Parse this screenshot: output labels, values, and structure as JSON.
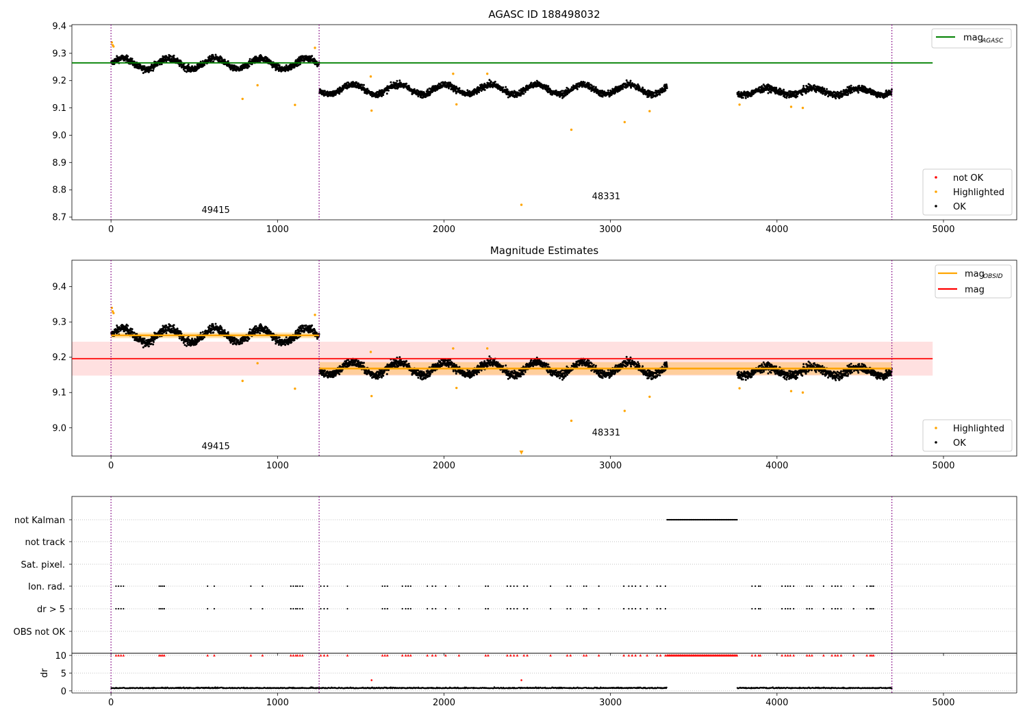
{
  "figure": {
    "title_top": "AGASC ID 188498032",
    "title_middle": "Magnitude Estimates"
  },
  "chart_data": [
    {
      "type": "scatter",
      "panel": "top",
      "title": "AGASC ID 188498032",
      "xlim": [
        -235,
        5440
      ],
      "ylim": [
        8.69,
        9.405
      ],
      "x_ticks": [
        0,
        1000,
        2000,
        3000,
        4000,
        5000
      ],
      "y_ticks": [
        8.7,
        8.8,
        8.9,
        9.0,
        9.1,
        9.2,
        9.3,
        9.4
      ],
      "y_tick_labels": [
        "8.7",
        "8.8",
        "8.9",
        "9.0",
        "9.1",
        "9.2",
        "9.3",
        "9.4"
      ],
      "mag_agasc": 9.265,
      "obs_boundaries": [
        0,
        1250,
        4690
      ],
      "obs_labels": [
        {
          "text": "49415",
          "x": 625
        },
        {
          "text": "48331",
          "x": 2970
        }
      ],
      "segments": [
        {
          "x_start": 0,
          "x_end": 1250,
          "mean": 9.262,
          "amp": 0.02,
          "noise": 0.012
        },
        {
          "x_start": 1250,
          "x_end": 3340,
          "mean": 9.168,
          "amp": 0.018,
          "noise": 0.012
        },
        {
          "x_start": 3760,
          "x_end": 4690,
          "mean": 9.16,
          "amp": 0.012,
          "noise": 0.012
        }
      ],
      "highlighted": [
        {
          "x": 5,
          "y": 9.34
        },
        {
          "x": 10,
          "y": 9.33
        },
        {
          "x": 15,
          "y": 9.325
        },
        {
          "x": 790,
          "y": 9.133
        },
        {
          "x": 880,
          "y": 9.183
        },
        {
          "x": 1105,
          "y": 9.111
        },
        {
          "x": 1225,
          "y": 9.32
        },
        {
          "x": 1560,
          "y": 9.215
        },
        {
          "x": 1565,
          "y": 9.09
        },
        {
          "x": 2055,
          "y": 9.225
        },
        {
          "x": 2075,
          "y": 9.113
        },
        {
          "x": 2260,
          "y": 9.225
        },
        {
          "x": 2465,
          "y": 8.745
        },
        {
          "x": 2765,
          "y": 9.02
        },
        {
          "x": 3085,
          "y": 9.048
        },
        {
          "x": 3235,
          "y": 9.088
        },
        {
          "x": 3775,
          "y": 9.112
        },
        {
          "x": 4085,
          "y": 9.104
        },
        {
          "x": 4155,
          "y": 9.1
        }
      ],
      "legend_top": [
        {
          "label": "mag",
          "subscript": "AGASC",
          "color": "#008000"
        }
      ],
      "legend_bottom": [
        {
          "label": "not OK",
          "color": "#ff0000"
        },
        {
          "label": "Highlighted",
          "color": "#ffa500"
        },
        {
          "label": "OK",
          "color": "#000000"
        }
      ]
    },
    {
      "type": "scatter",
      "panel": "middle",
      "title": "Magnitude Estimates",
      "xlim": [
        -235,
        5440
      ],
      "ylim": [
        8.92,
        9.475
      ],
      "x_ticks": [
        0,
        1000,
        2000,
        3000,
        4000,
        5000
      ],
      "y_ticks": [
        9.0,
        9.1,
        9.2,
        9.3,
        9.4
      ],
      "y_tick_labels": [
        "9.0",
        "9.1",
        "9.2",
        "9.3",
        "9.4"
      ],
      "mag": 9.196,
      "mag_band": [
        9.148,
        9.244
      ],
      "mag_obsid": [
        {
          "x_start": 0,
          "x_end": 1250,
          "value": 9.262,
          "band": [
            9.254,
            9.27
          ]
        },
        {
          "x_start": 1250,
          "x_end": 4690,
          "value": 9.168,
          "band": [
            9.15,
            9.186
          ]
        }
      ],
      "obs_labels": [
        {
          "text": "49415",
          "x": 625
        },
        {
          "text": "48331",
          "x": 2970
        }
      ],
      "legend_top": [
        {
          "label": "mag",
          "subscript": "OBSID",
          "color": "#ffa500"
        },
        {
          "label": "mag",
          "subscript": "",
          "color": "#ff0000"
        }
      ],
      "legend_bottom": [
        {
          "label": "Highlighted",
          "color": "#ffa500"
        },
        {
          "label": "OK",
          "color": "#000000"
        }
      ]
    },
    {
      "type": "scatter",
      "panel": "flags",
      "rows": [
        "not Kalman",
        "not track",
        "Sat. pixel.",
        "Ion. rad.",
        "dr > 5",
        "OBS not OK"
      ],
      "not_kalman_range": [
        3340,
        3760
      ],
      "flag_times": [
        30,
        45,
        60,
        75,
        290,
        300,
        310,
        320,
        580,
        620,
        840,
        910,
        1080,
        1095,
        1110,
        1120,
        1135,
        1150,
        1260,
        1280,
        1300,
        1420,
        1630,
        1645,
        1660,
        1750,
        1770,
        1785,
        1800,
        1900,
        1930,
        1950,
        2010,
        2090,
        2250,
        2265,
        2380,
        2400,
        2420,
        2440,
        2480,
        2500,
        2640,
        2740,
        2760,
        2840,
        2855,
        2930,
        3080,
        3110,
        3130,
        3150,
        3180,
        3220,
        3280,
        3300,
        3330,
        3850,
        3870,
        3890,
        3900,
        4030,
        4050,
        4065,
        4080,
        4100,
        4180,
        4195,
        4210,
        4280,
        4330,
        4350,
        4365,
        4385,
        4460,
        4540,
        4560,
        4570,
        4580
      ]
    },
    {
      "type": "scatter",
      "panel": "dr",
      "ylabel": "dr",
      "y_ticks": [
        0,
        5,
        10
      ],
      "y_tick_labels": [
        "0",
        "5",
        "10"
      ],
      "ylim": [
        -0.6,
        10.6
      ],
      "x_ticks": [
        0,
        1000,
        2000,
        3000,
        4000,
        5000
      ],
      "dr_outliers": [
        {
          "x": 1565,
          "y": 3.0
        },
        {
          "x": 2465,
          "y": 3.0
        }
      ]
    }
  ]
}
